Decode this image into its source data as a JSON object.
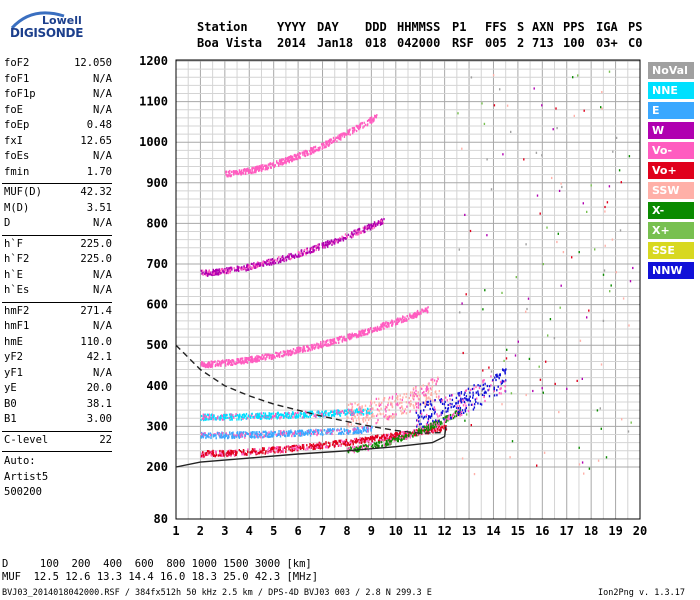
{
  "logo": {
    "line1": "Lowell",
    "line2": "DIGISONDE"
  },
  "header": {
    "columns": [
      {
        "label": "Station",
        "value": "Boa Vista"
      },
      {
        "label": "YYYY",
        "value": "2014"
      },
      {
        "label": "DAY",
        "value": "Jan18"
      },
      {
        "label": "DDD",
        "value": "018"
      },
      {
        "label": "HHMMSS",
        "value": "042000"
      },
      {
        "label": "P1",
        "value": "RSF"
      },
      {
        "label": "FFS",
        "value": "005"
      },
      {
        "label": "S",
        "value": "2"
      },
      {
        "label": "AXN",
        "value": "713"
      },
      {
        "label": "PPS",
        "value": "100"
      },
      {
        "label": "IGA",
        "value": "03+"
      },
      {
        "label": "PS",
        "value": "C0"
      }
    ]
  },
  "params": {
    "group1": [
      {
        "key": "foF2",
        "value": "12.050"
      },
      {
        "key": "foF1",
        "value": "N/A"
      },
      {
        "key": "foF1p",
        "value": "N/A"
      },
      {
        "key": "foE",
        "value": "N/A"
      },
      {
        "key": "foEp",
        "value": "0.48"
      },
      {
        "key": "fxI",
        "value": "12.65"
      },
      {
        "key": "foEs",
        "value": "N/A"
      },
      {
        "key": "fmin",
        "value": "1.70"
      }
    ],
    "group2": [
      {
        "key": "MUF(D)",
        "value": "42.32"
      },
      {
        "key": "M(D)",
        "value": "3.51"
      },
      {
        "key": "D",
        "value": "N/A"
      }
    ],
    "group3": [
      {
        "key": "h`F",
        "value": "225.0"
      },
      {
        "key": "h`F2",
        "value": "225.0"
      },
      {
        "key": "h`E",
        "value": "N/A"
      },
      {
        "key": "h`Es",
        "value": "N/A"
      }
    ],
    "group4": [
      {
        "key": "hmF2",
        "value": "271.4"
      },
      {
        "key": "hmF1",
        "value": "N/A"
      },
      {
        "key": "hmE",
        "value": "110.0"
      },
      {
        "key": "yF2",
        "value": "42.1"
      },
      {
        "key": "yF1",
        "value": "N/A"
      },
      {
        "key": "yE",
        "value": "20.0"
      },
      {
        "key": "B0",
        "value": "38.1"
      },
      {
        "key": "B1",
        "value": "3.00"
      }
    ],
    "group5": [
      {
        "key": "C-level",
        "value": "22"
      }
    ],
    "auto": [
      "Auto:",
      "Artist5",
      "500200"
    ]
  },
  "legend": [
    {
      "label": "NoVal",
      "color": "#a0a0a0"
    },
    {
      "label": "NNE",
      "color": "#00e0ff"
    },
    {
      "label": "E",
      "color": "#3aa8ff"
    },
    {
      "label": "W",
      "color": "#b000b0"
    },
    {
      "label": "Vo-",
      "color": "#ff5cc0"
    },
    {
      "label": "Vo+",
      "color": "#e0001c"
    },
    {
      "label": "SSW",
      "color": "#ffb0a8"
    },
    {
      "label": "X-",
      "color": "#0a8a00"
    },
    {
      "label": "X+",
      "color": "#78c050"
    },
    {
      "label": "SSE",
      "color": "#d8d820"
    },
    {
      "label": "NNW",
      "color": "#1010d8"
    }
  ],
  "muf_table": {
    "d_line": "D     100  200  400  600  800 1000 1500 3000 [km]",
    "muf_line": "MUF  12.5 12.6 13.3 14.4 16.0 18.3 25.0 42.3 [MHz]"
  },
  "footer": {
    "left": "BVJ03_2014018042000.RSF / 384fx512h 50 kHz 2.5 km / DPS-4D BVJ03 003 / 2.8 N 299.3 E",
    "right": "Ion2Png v. 1.3.17"
  },
  "chart_data": {
    "type": "scatter",
    "xlim": [
      1,
      20
    ],
    "ylim": [
      80,
      1200
    ],
    "x_ticks": [
      1,
      2,
      3,
      4,
      5,
      6,
      7,
      8,
      9,
      10,
      11,
      12,
      13,
      14,
      15,
      16,
      17,
      18,
      19,
      20
    ],
    "y_ticks": [
      80,
      200,
      300,
      400,
      500,
      600,
      700,
      800,
      900,
      1000,
      1100,
      1200
    ],
    "grid": true,
    "legend_position": "right",
    "traces": [
      {
        "name": "O-trace F2",
        "color": "#e0001c",
        "x_range": [
          2.0,
          12.05
        ],
        "h_start": 235,
        "h_end": 300
      },
      {
        "name": "X-trace F2",
        "color": "#0a8a00",
        "x_range": [
          8.0,
          12.65
        ],
        "h_start": 245,
        "h_end": 340
      },
      {
        "name": "2nd hop",
        "color": "#ff5cc0",
        "x_range": [
          2.0,
          11.3
        ],
        "h_start": 455,
        "h_end": 590
      },
      {
        "name": "3rd hop",
        "color": "#b000b0",
        "x_range": [
          2.0,
          9.5
        ],
        "h_start": 680,
        "h_end": 810
      },
      {
        "name": "4th hop",
        "color": "#ff5cc0",
        "x_range": [
          3.0,
          9.2
        ],
        "h_start": 925,
        "h_end": 1065
      },
      {
        "name": "oblique NNE",
        "color": "#00e0ff",
        "x_range": [
          2.0,
          9.0
        ],
        "h_start": 325,
        "h_end": 340
      },
      {
        "name": "oblique E",
        "color": "#3aa8ff",
        "x_range": [
          2.0,
          9.0
        ],
        "h_start": 280,
        "h_end": 295
      },
      {
        "name": "spread SSW",
        "color": "#ffb0a8",
        "x_range": [
          8.0,
          11.8
        ],
        "h_start": 330,
        "h_end": 400
      },
      {
        "name": "spread NNW",
        "color": "#1010d8",
        "x_range": [
          10.8,
          14.5
        ],
        "h_start": 330,
        "h_end": 420
      }
    ],
    "profile_solid": [
      [
        1.0,
        200
      ],
      [
        2,
        212
      ],
      [
        4,
        222
      ],
      [
        6,
        232
      ],
      [
        8,
        240
      ],
      [
        10,
        250
      ],
      [
        11.5,
        260
      ],
      [
        12.0,
        275
      ],
      [
        12.05,
        300
      ]
    ],
    "profile_dashed": [
      [
        1.0,
        500
      ],
      [
        2,
        440
      ],
      [
        3,
        400
      ],
      [
        4,
        375
      ],
      [
        5,
        355
      ],
      [
        6,
        340
      ],
      [
        7,
        325
      ],
      [
        8,
        312
      ],
      [
        9,
        300
      ],
      [
        10,
        290
      ],
      [
        11,
        283
      ],
      [
        12.0,
        285
      ]
    ]
  }
}
